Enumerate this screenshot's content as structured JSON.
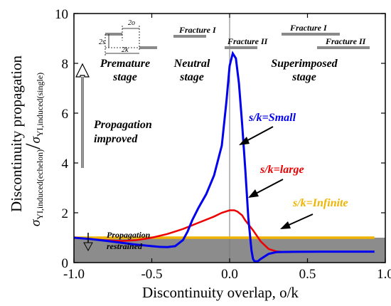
{
  "chart_data": {
    "type": "line",
    "xlabel": "Discontinuity overlap, o/k",
    "ylabel_top": "Discontinuity propagation",
    "ylabel_num_main": "σ",
    "ylabel_num_sub": "YI,induced(echelon)",
    "ylabel_den_main": "σ",
    "ylabel_den_sub": "YI,induced(single)",
    "xlim": [
      -1.0,
      1.0
    ],
    "ylim": [
      0,
      10
    ],
    "xticks": [
      "-1.0",
      "-0.5",
      "0.0",
      "0.5",
      "1.0"
    ],
    "xtick_values": [
      -1.0,
      -0.5,
      0.0,
      0.5,
      1.0
    ],
    "yticks": [
      "0",
      "2",
      "4",
      "6",
      "8",
      "10"
    ],
    "ytick_values": [
      0,
      2,
      4,
      6,
      8,
      10
    ],
    "restrained_band": [
      0,
      1
    ],
    "series": [
      {
        "name": "s/k=Small",
        "color": "#0000ee",
        "x": [
          -1.0,
          -0.9,
          -0.8,
          -0.7,
          -0.6,
          -0.5,
          -0.45,
          -0.4,
          -0.35,
          -0.3,
          -0.27,
          -0.24,
          -0.2,
          -0.15,
          -0.1,
          -0.05,
          -0.02,
          0.0,
          0.02,
          0.04,
          0.06,
          0.08,
          0.1,
          0.12,
          0.14,
          0.15,
          0.16,
          0.18,
          0.2,
          0.25,
          0.3,
          0.4,
          0.6,
          0.8,
          0.93
        ],
        "y": [
          1.0,
          0.95,
          0.88,
          0.8,
          0.72,
          0.66,
          0.63,
          0.62,
          0.66,
          0.9,
          1.25,
          1.7,
          2.2,
          2.75,
          3.5,
          4.7,
          6.5,
          7.9,
          8.4,
          8.2,
          7.2,
          5.6,
          3.8,
          1.8,
          0.5,
          0.15,
          0.05,
          0.05,
          0.15,
          0.35,
          0.42,
          0.43,
          0.44,
          0.44,
          0.44
        ]
      },
      {
        "name": "s/k=large",
        "color": "#ee0000",
        "x": [
          -1.0,
          -0.9,
          -0.8,
          -0.7,
          -0.6,
          -0.5,
          -0.4,
          -0.3,
          -0.2,
          -0.1,
          -0.05,
          0.0,
          0.03,
          0.05,
          0.08,
          0.1,
          0.15,
          0.2,
          0.25,
          0.3,
          0.35,
          0.4
        ],
        "y": [
          1.0,
          0.95,
          0.9,
          0.87,
          0.9,
          1.0,
          1.15,
          1.35,
          1.6,
          1.85,
          2.0,
          2.1,
          2.1,
          2.05,
          1.9,
          1.7,
          1.3,
          0.85,
          0.55,
          0.45,
          0.42,
          0.42
        ]
      },
      {
        "name": "s/k=Infinite",
        "color": "#f0b400",
        "x": [
          -1.0,
          0.93
        ],
        "y": [
          1.0,
          1.0
        ]
      }
    ],
    "annotations": {
      "premature_stage": "Premature stage",
      "neutral_stage": "Neutral stage",
      "superimposed_stage": "Superimposed stage",
      "fracture_1": "Fracture I",
      "fracture_2": "Fracture II",
      "propagation_improved": "Propagation improved",
      "propagation_restrained": "Propagation restrained",
      "label_small": "s/k=Small",
      "label_large": "s/k=large",
      "label_infinite": "s/k=Infinite",
      "schematic_2o": "2o",
      "schematic_2s": "2s",
      "schematic_2k": "2k"
    },
    "colors": {
      "small": "#0000ee",
      "large": "#ee0000",
      "infinite": "#f0b400",
      "band": "#8c8c8c",
      "fracture_bar": "#8a8a8a"
    }
  }
}
